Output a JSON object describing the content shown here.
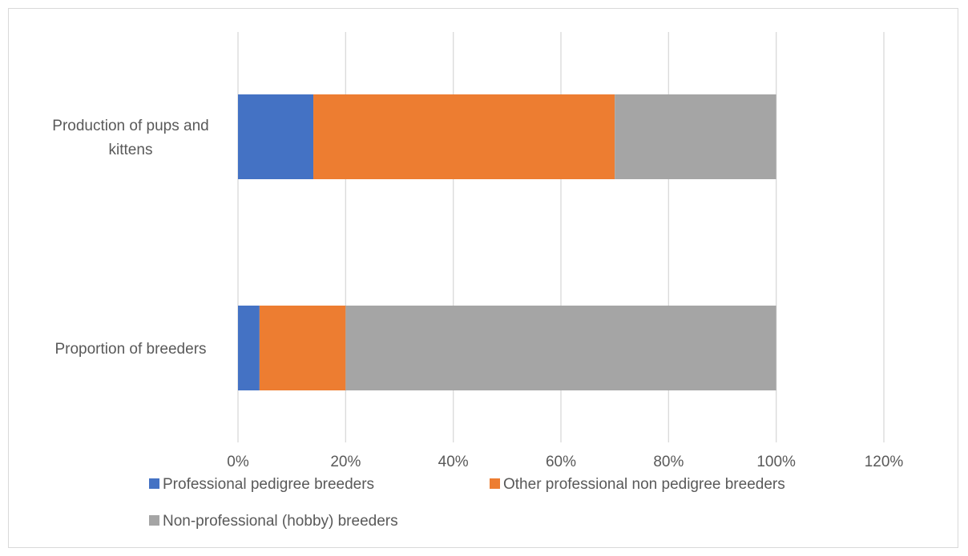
{
  "chart_data": {
    "type": "bar",
    "orientation": "horizontal",
    "stacked": true,
    "categories": [
      "Production of pups and kittens",
      "Proportion of breeders"
    ],
    "category_lines": [
      [
        "Production of pups and",
        "kittens"
      ],
      [
        "Proportion of breeders"
      ]
    ],
    "series": [
      {
        "name": "Professional pedigree breeders",
        "color": "#4472c4",
        "values": [
          14,
          4
        ]
      },
      {
        "name": "Other professional non pedigree breeders",
        "color": "#ed7d31",
        "values": [
          56,
          16
        ]
      },
      {
        "name": "Non-professional (hobby) breeders",
        "color": "#a5a5a5",
        "values": [
          30,
          80
        ]
      }
    ],
    "xlim": [
      0,
      120
    ],
    "x_ticks": [
      0,
      20,
      40,
      60,
      80,
      100,
      120
    ],
    "x_tick_labels": [
      "0%",
      "20%",
      "40%",
      "60%",
      "80%",
      "100%",
      "120%"
    ],
    "grid": true,
    "legend_position": "bottom",
    "title": "",
    "xlabel": "",
    "ylabel": ""
  }
}
